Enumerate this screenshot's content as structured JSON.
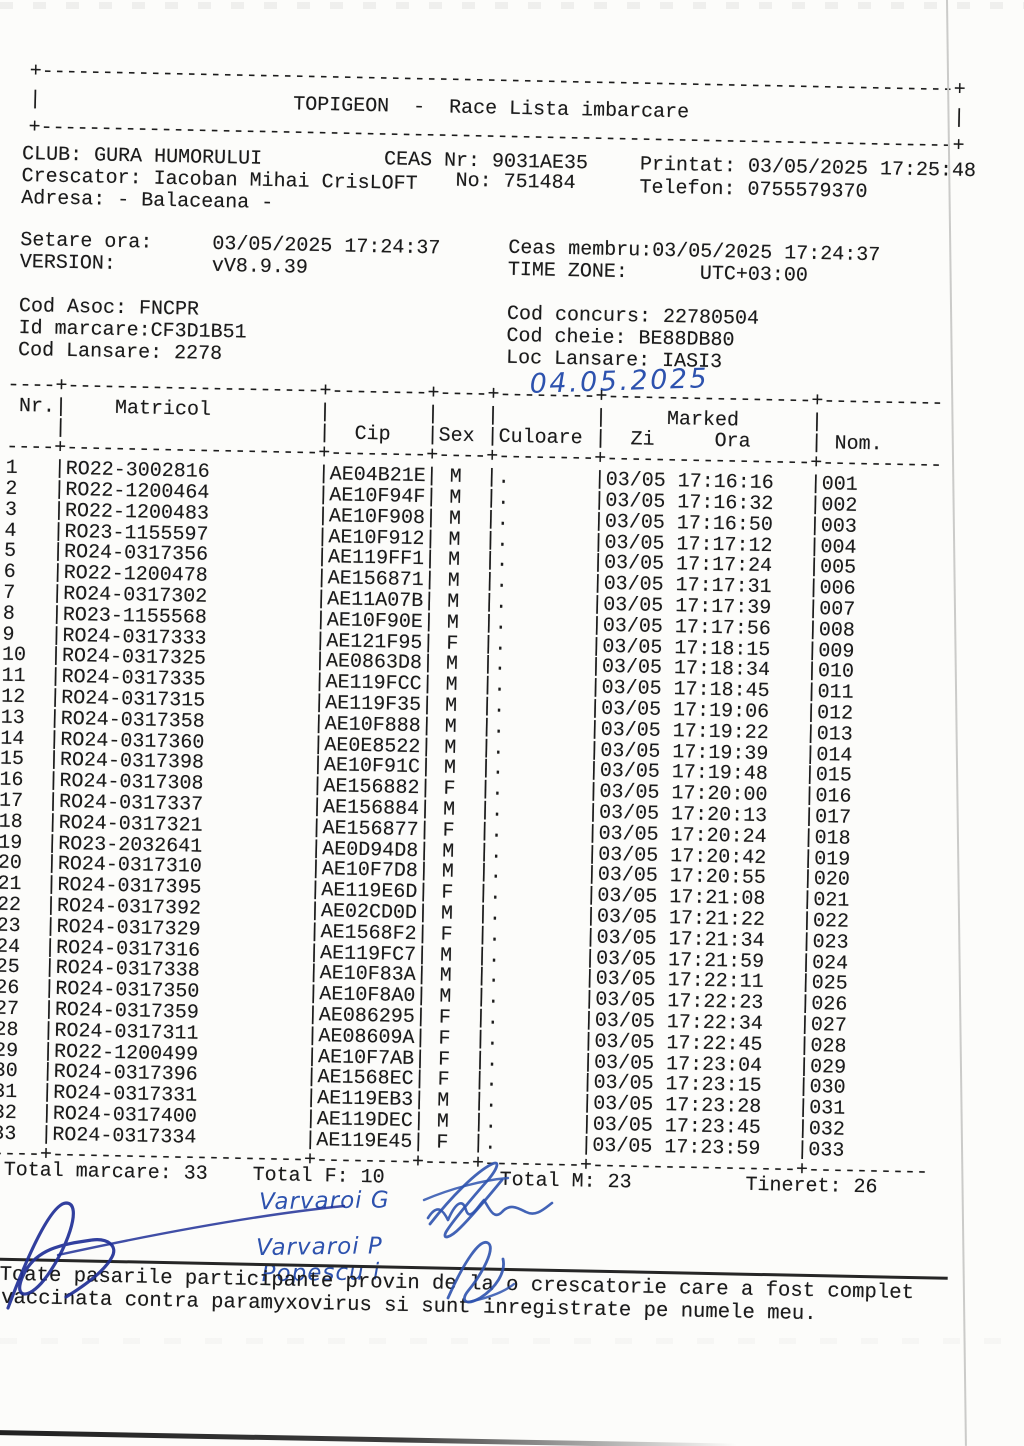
{
  "colors": {
    "print_ink": "#1b1b1b",
    "hand_ink_blue": "#2d52ae",
    "hand_ink_dark": "#1f2f96"
  },
  "header_box": {
    "title": "TOPIGEON  -  Race Lista imbarcare"
  },
  "club": {
    "club": "CLUB: GURA HUMORULUI",
    "ceas_nr": "CEAS Nr: 9031AE35",
    "printat": "Printat: 03/05/2025 17:25:48",
    "crescator": "Crescator: Iacoban Mihai CrisLOFT",
    "no": "No: 751484",
    "telefon": "Telefon: 0755579370",
    "adresa": "Adresa: - Balaceana -"
  },
  "settings": {
    "setare_ora": "Setare ora:     03/05/2025 17:24:37",
    "version": "VERSION:        vV8.9.39",
    "ceas_membru": "Ceas membru:03/05/2025 17:24:37",
    "time_zone": "TIME ZONE:      UTC+03:00"
  },
  "codes": {
    "cod_asoc": "Cod Asoc: FNCPR",
    "id_marcare": "Id marcare:CF3D1B51",
    "cod_lansare": "Cod Lansare: 2278",
    "cod_concurs": "Cod concurs: 22780504",
    "cod_cheie": "Cod cheie: BE88DB80",
    "loc_lansare": "Loc Lansare: IASI3"
  },
  "handwriting": {
    "date": "04.05.2025",
    "names": [
      "Varvaroi G",
      "Varvaroi P",
      "Popescu i"
    ]
  },
  "table": {
    "headers": {
      "nr": "Nr.",
      "matricol": "Matricol",
      "cip": "Cip",
      "sex": "Sex",
      "culoare": "Culoare",
      "marked": "Marked",
      "zi": "Zi",
      "ora": "Ora",
      "nom": "Nom."
    },
    "rows": [
      {
        "nr": "1",
        "matricol": "RO22-3002816",
        "cip": "AE04B21E",
        "sex": "M",
        "culoare": ".",
        "zi": "03/05",
        "ora": "17:16:16",
        "nom": "001"
      },
      {
        "nr": "2",
        "matricol": "RO22-1200464",
        "cip": "AE10F94F",
        "sex": "M",
        "culoare": ".",
        "zi": "03/05",
        "ora": "17:16:32",
        "nom": "002"
      },
      {
        "nr": "3",
        "matricol": "RO22-1200483",
        "cip": "AE10F908",
        "sex": "M",
        "culoare": ".",
        "zi": "03/05",
        "ora": "17:16:50",
        "nom": "003"
      },
      {
        "nr": "4",
        "matricol": "RO23-1155597",
        "cip": "AE10F912",
        "sex": "M",
        "culoare": ".",
        "zi": "03/05",
        "ora": "17:17:12",
        "nom": "004"
      },
      {
        "nr": "5",
        "matricol": "RO24-0317356",
        "cip": "AE119FF1",
        "sex": "M",
        "culoare": ".",
        "zi": "03/05",
        "ora": "17:17:24",
        "nom": "005"
      },
      {
        "nr": "6",
        "matricol": "RO22-1200478",
        "cip": "AE156871",
        "sex": "M",
        "culoare": ".",
        "zi": "03/05",
        "ora": "17:17:31",
        "nom": "006"
      },
      {
        "nr": "7",
        "matricol": "RO24-0317302",
        "cip": "AE11A07B",
        "sex": "M",
        "culoare": ".",
        "zi": "03/05",
        "ora": "17:17:39",
        "nom": "007"
      },
      {
        "nr": "8",
        "matricol": "RO23-1155568",
        "cip": "AE10F90E",
        "sex": "M",
        "culoare": ".",
        "zi": "03/05",
        "ora": "17:17:56",
        "nom": "008"
      },
      {
        "nr": "9",
        "matricol": "RO24-0317333",
        "cip": "AE121F95",
        "sex": "F",
        "culoare": ".",
        "zi": "03/05",
        "ora": "17:18:15",
        "nom": "009"
      },
      {
        "nr": "10",
        "matricol": "RO24-0317325",
        "cip": "AE0863D8",
        "sex": "M",
        "culoare": ".",
        "zi": "03/05",
        "ora": "17:18:34",
        "nom": "010"
      },
      {
        "nr": "11",
        "matricol": "RO24-0317335",
        "cip": "AE119FCC",
        "sex": "M",
        "culoare": ".",
        "zi": "03/05",
        "ora": "17:18:45",
        "nom": "011"
      },
      {
        "nr": "12",
        "matricol": "RO24-0317315",
        "cip": "AE119F35",
        "sex": "M",
        "culoare": ".",
        "zi": "03/05",
        "ora": "17:19:06",
        "nom": "012"
      },
      {
        "nr": "13",
        "matricol": "RO24-0317358",
        "cip": "AE10F888",
        "sex": "M",
        "culoare": ".",
        "zi": "03/05",
        "ora": "17:19:22",
        "nom": "013"
      },
      {
        "nr": "14",
        "matricol": "RO24-0317360",
        "cip": "AE0E8522",
        "sex": "M",
        "culoare": ".",
        "zi": "03/05",
        "ora": "17:19:39",
        "nom": "014"
      },
      {
        "nr": "15",
        "matricol": "RO24-0317398",
        "cip": "AE10F91C",
        "sex": "M",
        "culoare": ".",
        "zi": "03/05",
        "ora": "17:19:48",
        "nom": "015"
      },
      {
        "nr": "16",
        "matricol": "RO24-0317308",
        "cip": "AE156882",
        "sex": "F",
        "culoare": ".",
        "zi": "03/05",
        "ora": "17:20:00",
        "nom": "016"
      },
      {
        "nr": "17",
        "matricol": "RO24-0317337",
        "cip": "AE156884",
        "sex": "M",
        "culoare": ".",
        "zi": "03/05",
        "ora": "17:20:13",
        "nom": "017"
      },
      {
        "nr": "18",
        "matricol": "RO24-0317321",
        "cip": "AE156877",
        "sex": "F",
        "culoare": ".",
        "zi": "03/05",
        "ora": "17:20:24",
        "nom": "018"
      },
      {
        "nr": "19",
        "matricol": "RO23-2032641",
        "cip": "AE0D94D8",
        "sex": "M",
        "culoare": ".",
        "zi": "03/05",
        "ora": "17:20:42",
        "nom": "019"
      },
      {
        "nr": "20",
        "matricol": "RO24-0317310",
        "cip": "AE10F7D8",
        "sex": "M",
        "culoare": ".",
        "zi": "03/05",
        "ora": "17:20:55",
        "nom": "020"
      },
      {
        "nr": "21",
        "matricol": "RO24-0317395",
        "cip": "AE119E6D",
        "sex": "F",
        "culoare": ".",
        "zi": "03/05",
        "ora": "17:21:08",
        "nom": "021"
      },
      {
        "nr": "22",
        "matricol": "RO24-0317392",
        "cip": "AE02CD0D",
        "sex": "M",
        "culoare": ".",
        "zi": "03/05",
        "ora": "17:21:22",
        "nom": "022"
      },
      {
        "nr": "23",
        "matricol": "RO24-0317329",
        "cip": "AE1568F2",
        "sex": "F",
        "culoare": ".",
        "zi": "03/05",
        "ora": "17:21:34",
        "nom": "023"
      },
      {
        "nr": "24",
        "matricol": "RO24-0317316",
        "cip": "AE119FC7",
        "sex": "M",
        "culoare": ".",
        "zi": "03/05",
        "ora": "17:21:59",
        "nom": "024"
      },
      {
        "nr": "25",
        "matricol": "RO24-0317338",
        "cip": "AE10F83A",
        "sex": "M",
        "culoare": ".",
        "zi": "03/05",
        "ora": "17:22:11",
        "nom": "025"
      },
      {
        "nr": "26",
        "matricol": "RO24-0317350",
        "cip": "AE10F8A0",
        "sex": "M",
        "culoare": ".",
        "zi": "03/05",
        "ora": "17:22:23",
        "nom": "026"
      },
      {
        "nr": "27",
        "matricol": "RO24-0317359",
        "cip": "AE086295",
        "sex": "F",
        "culoare": ".",
        "zi": "03/05",
        "ora": "17:22:34",
        "nom": "027"
      },
      {
        "nr": "28",
        "matricol": "RO24-0317311",
        "cip": "AE08609A",
        "sex": "F",
        "culoare": ".",
        "zi": "03/05",
        "ora": "17:22:45",
        "nom": "028"
      },
      {
        "nr": "29",
        "matricol": "RO22-1200499",
        "cip": "AE10F7AB",
        "sex": "F",
        "culoare": ".",
        "zi": "03/05",
        "ora": "17:23:04",
        "nom": "029"
      },
      {
        "nr": "30",
        "matricol": "RO24-0317396",
        "cip": "AE1568EC",
        "sex": "F",
        "culoare": ".",
        "zi": "03/05",
        "ora": "17:23:15",
        "nom": "030"
      },
      {
        "nr": "31",
        "matricol": "RO24-0317331",
        "cip": "AE119EB3",
        "sex": "M",
        "culoare": ".",
        "zi": "03/05",
        "ora": "17:23:28",
        "nom": "031"
      },
      {
        "nr": "32",
        "matricol": "RO24-0317400",
        "cip": "AE119DEC",
        "sex": "M",
        "culoare": ".",
        "zi": "03/05",
        "ora": "17:23:45",
        "nom": "032"
      },
      {
        "nr": "33",
        "matricol": "RO24-0317334",
        "cip": "AE119E45",
        "sex": "F",
        "culoare": ".",
        "zi": "03/05",
        "ora": "17:23:59",
        "nom": "033"
      }
    ]
  },
  "totals": {
    "total_marcare": "Total marcare: 33",
    "total_f": "Total F: 10",
    "total_m": "Total M: 23",
    "tineret": "Tineret: 26"
  },
  "statement": {
    "line1": "Toate pasarile participante provin de la o crescatorie care a fost complet",
    "line2": "vaccinata contra paramyxovirus si sunt inregistrate pe numele meu."
  }
}
